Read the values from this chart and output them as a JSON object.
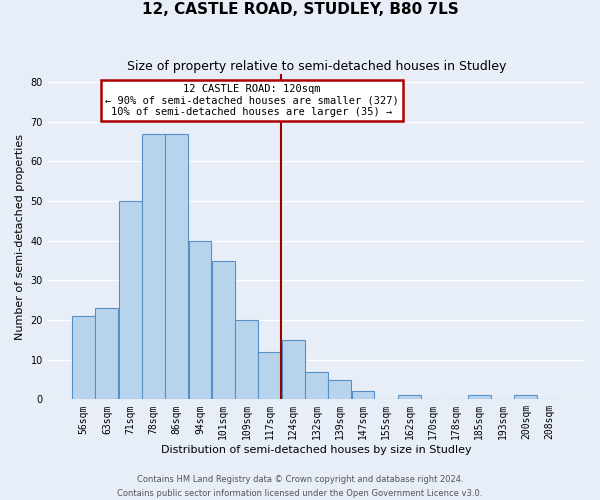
{
  "title": "12, CASTLE ROAD, STUDLEY, B80 7LS",
  "subtitle": "Size of property relative to semi-detached houses in Studley",
  "xlabel": "Distribution of semi-detached houses by size in Studley",
  "ylabel": "Number of semi-detached properties",
  "footer_line1": "Contains HM Land Registry data © Crown copyright and database right 2024.",
  "footer_line2": "Contains public sector information licensed under the Open Government Licence v3.0.",
  "bin_labels": [
    "56sqm",
    "63sqm",
    "71sqm",
    "78sqm",
    "86sqm",
    "94sqm",
    "101sqm",
    "109sqm",
    "117sqm",
    "124sqm",
    "132sqm",
    "139sqm",
    "147sqm",
    "155sqm",
    "162sqm",
    "170sqm",
    "178sqm",
    "185sqm",
    "193sqm",
    "200sqm",
    "208sqm"
  ],
  "counts": [
    21,
    23,
    50,
    67,
    67,
    40,
    35,
    20,
    12,
    15,
    7,
    5,
    2,
    0,
    1,
    0,
    0,
    1,
    0,
    1,
    0
  ],
  "bar_color": "#b8d4ec",
  "bar_edge_color": "#5590c8",
  "property_size_idx": 8,
  "vline_color": "#990000",
  "annotation_line1": "12 CASTLE ROAD: 120sqm",
  "annotation_line2": "← 90% of semi-detached houses are smaller (327)",
  "annotation_line3": "10% of semi-detached houses are larger (35) →",
  "annotation_box_color": "#ffffff",
  "annotation_box_edge_color": "#aa0000",
  "ylim": [
    0,
    82
  ],
  "yticks": [
    0,
    10,
    20,
    30,
    40,
    50,
    60,
    70,
    80
  ],
  "background_color": "#e8eef7",
  "grid_color": "#ffffff",
  "title_fontsize": 11,
  "subtitle_fontsize": 9,
  "axis_label_fontsize": 8,
  "tick_fontsize": 7,
  "annotation_fontsize": 7.5,
  "footer_fontsize": 6
}
